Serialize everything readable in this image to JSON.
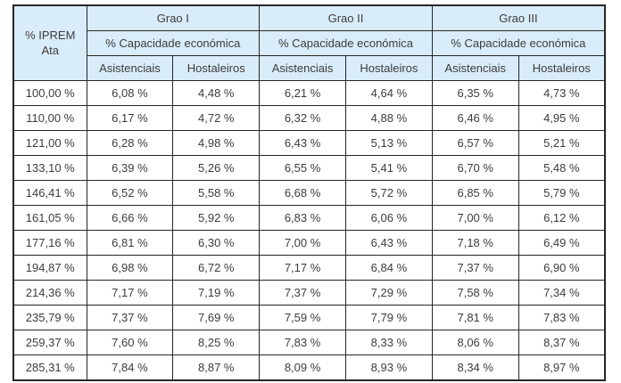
{
  "colors": {
    "header_bg": "#d9ecf9",
    "border": "#262626",
    "text": "#3c3c3c",
    "cell_bg": "#ffffff"
  },
  "chart_data": {
    "type": "table",
    "corner_header": "% IPREM Ata",
    "groups": [
      {
        "label": "Grao I",
        "sub": "% Capacidade económica",
        "cols": [
          "Asistenciais",
          "Hostaleiros"
        ]
      },
      {
        "label": "Grao II",
        "sub": "% Capacidade económica",
        "cols": [
          "Asistenciais",
          "Hostaleiros"
        ]
      },
      {
        "label": "Grao III",
        "sub": "% Capacidade económica",
        "cols": [
          "Asistenciais",
          "Hostaleiros"
        ]
      }
    ],
    "rows": [
      {
        "iprem": "100,00 %",
        "values": [
          "6,08 %",
          "4,48 %",
          "6,21 %",
          "4,64 %",
          "6,35 %",
          "4,73 %"
        ]
      },
      {
        "iprem": "110,00 %",
        "values": [
          "6,17 %",
          "4,72 %",
          "6,32 %",
          "4,88 %",
          "6,46 %",
          "4,95 %"
        ]
      },
      {
        "iprem": "121,00 %",
        "values": [
          "6,28 %",
          "4,98 %",
          "6,43 %",
          "5,13 %",
          "6,57 %",
          "5,21 %"
        ]
      },
      {
        "iprem": "133,10 %",
        "values": [
          "6,39 %",
          "5,26 %",
          "6,55 %",
          "5,41 %",
          "6,70 %",
          "5,48 %"
        ]
      },
      {
        "iprem": "146,41 %",
        "values": [
          "6,52 %",
          "5,58 %",
          "6,68 %",
          "5,72 %",
          "6,85 %",
          "5,79 %"
        ]
      },
      {
        "iprem": "161,05 %",
        "values": [
          "6,66 %",
          "5,92 %",
          "6,83 %",
          "6,06 %",
          "7,00 %",
          "6,12 %"
        ]
      },
      {
        "iprem": "177,16 %",
        "values": [
          "6,81 %",
          "6,30 %",
          "7,00 %",
          "6,43 %",
          "7,18 %",
          "6,49 %"
        ]
      },
      {
        "iprem": "194,87 %",
        "values": [
          "6,98 %",
          "6,72 %",
          "7,17 %",
          "6,84 %",
          "7,37 %",
          "6,90 %"
        ]
      },
      {
        "iprem": "214,36 %",
        "values": [
          "7,17 %",
          "7,19 %",
          "7,37 %",
          "7,29 %",
          "7,58 %",
          "7,34 %"
        ]
      },
      {
        "iprem": "235,79 %",
        "values": [
          "7,37 %",
          "7,69 %",
          "7,59 %",
          "7,79 %",
          "7,81 %",
          "7,83 %"
        ]
      },
      {
        "iprem": "259,37 %",
        "values": [
          "7,60 %",
          "8,25 %",
          "7,83 %",
          "8,33 %",
          "8,06 %",
          "8,37 %"
        ]
      },
      {
        "iprem": "285,31 %",
        "values": [
          "7,84 %",
          "8,87 %",
          "8,09 %",
          "8,93 %",
          "8,34 %",
          "8,97 %"
        ]
      }
    ]
  }
}
